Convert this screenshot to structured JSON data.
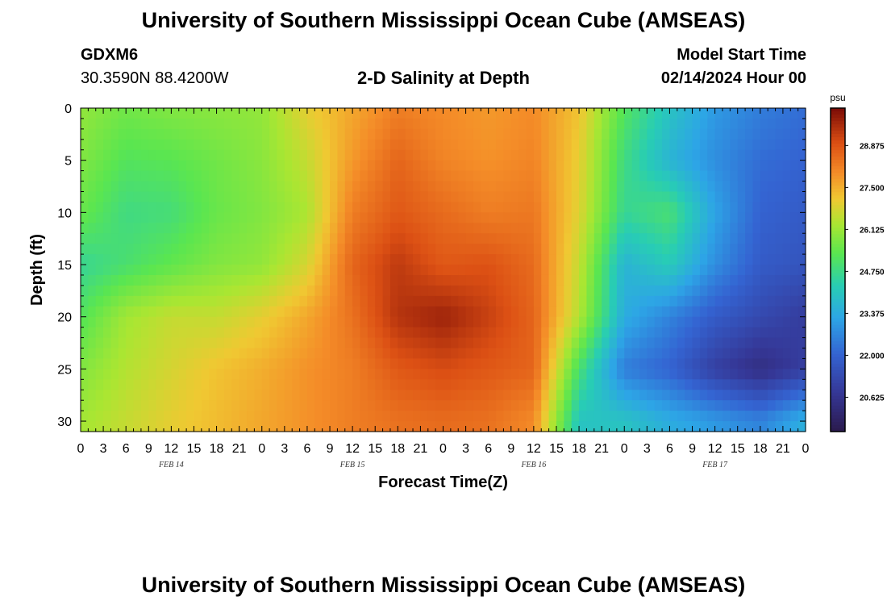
{
  "header": {
    "title": "University of Southern Mississippi Ocean Cube (AMSEAS)",
    "station_id": "GDXM6",
    "station_coords": "30.3590N  88.4200W",
    "plot_title": "2-D Salinity at Depth",
    "model_start_label": "Model Start Time",
    "model_start_value": "02/14/2024 Hour 00"
  },
  "footer": {
    "title": "University of Southern Mississippi Ocean Cube (AMSEAS)"
  },
  "colors": {
    "low": "#2b1a4d",
    "mid": "#39e05a",
    "high": "#7a0a06"
  },
  "chart_data": {
    "type": "heatmap",
    "title": "2-D Salinity at Depth",
    "xlabel": "Forecast Time(Z)",
    "ylabel": "Depth (ft)",
    "x_tick_labels": [
      "0",
      "3",
      "6",
      "9",
      "12",
      "15",
      "18",
      "21",
      "0",
      "3",
      "6",
      "9",
      "12",
      "15",
      "18",
      "21",
      "0",
      "3",
      "6",
      "9",
      "12",
      "15",
      "18",
      "21",
      "0",
      "3",
      "6",
      "9",
      "12",
      "15",
      "18",
      "21",
      "0"
    ],
    "day_labels": [
      {
        "label": "FEB 14",
        "hour": 12
      },
      {
        "label": "FEB 15",
        "hour": 36
      },
      {
        "label": "FEB 16",
        "hour": 60
      },
      {
        "label": "FEB 17",
        "hour": 84
      }
    ],
    "xlim_hours": [
      0,
      96
    ],
    "y_ticks": [
      0,
      5,
      10,
      15,
      20,
      25,
      30
    ],
    "ylim_ft": [
      0,
      31
    ],
    "colorbar": {
      "unit": "psu",
      "ticks": [
        "28.875",
        "27.500",
        "26.125",
        "24.750",
        "23.375",
        "22.000",
        "20.625"
      ],
      "range": [
        19.5,
        30.1
      ]
    },
    "z_hours": [
      0,
      6,
      12,
      18,
      24,
      30,
      36,
      42,
      48,
      54,
      60,
      66,
      72,
      78,
      84,
      90,
      96
    ],
    "z_depths_ft": [
      0,
      5,
      10,
      15,
      20,
      25,
      30
    ],
    "z_values": [
      [
        26.0,
        25.6,
        25.8,
        25.9,
        26.0,
        27.0,
        27.6,
        28.2,
        28.0,
        27.8,
        28.0,
        27.2,
        25.2,
        24.0,
        23.0,
        22.5,
        22.2
      ],
      [
        25.8,
        25.2,
        25.3,
        25.6,
        25.9,
        26.6,
        27.8,
        28.6,
        28.1,
        27.9,
        28.1,
        27.0,
        24.8,
        23.6,
        22.8,
        22.2,
        22.0
      ],
      [
        25.5,
        24.8,
        24.9,
        25.5,
        25.8,
        26.3,
        28.2,
        28.8,
        28.5,
        28.2,
        28.3,
        26.9,
        24.6,
        25.0,
        23.2,
        22.0,
        21.8
      ],
      [
        24.6,
        25.0,
        25.4,
        25.8,
        26.0,
        26.8,
        28.6,
        29.3,
        28.8,
        28.9,
        28.5,
        26.6,
        23.6,
        24.2,
        22.8,
        21.8,
        21.6
      ],
      [
        25.2,
        26.2,
        26.6,
        26.6,
        27.0,
        27.6,
        28.4,
        29.4,
        29.7,
        29.2,
        28.6,
        26.4,
        23.4,
        22.6,
        21.8,
        21.3,
        20.9
      ],
      [
        25.8,
        26.4,
        26.8,
        27.2,
        27.5,
        27.9,
        28.2,
        28.8,
        29.0,
        28.8,
        28.6,
        25.0,
        22.5,
        22.0,
        21.0,
        20.4,
        21.0
      ],
      [
        26.2,
        26.6,
        27.0,
        27.3,
        27.6,
        27.9,
        28.2,
        28.4,
        28.5,
        28.4,
        28.0,
        24.0,
        24.0,
        23.4,
        23.0,
        22.6,
        23.5
      ]
    ]
  }
}
